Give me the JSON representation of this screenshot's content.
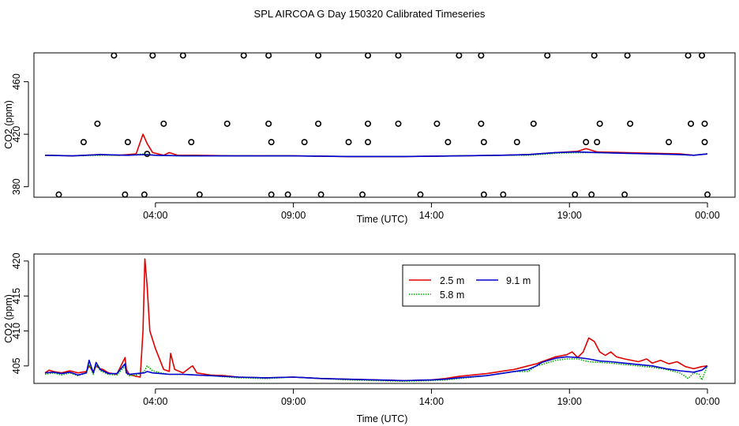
{
  "title": "SPL AIRCOA G  Day 150320  Calibrated Timeseries",
  "colors": {
    "s25": "#e00000",
    "s58": "#00b000",
    "s91": "#0000d0",
    "axis": "#000000"
  },
  "chart_data": [
    {
      "type": "line",
      "name": "top-panel",
      "ylabel": "CO2 (ppm)",
      "xlabel": "Time (UTC)",
      "x_unit": "hours",
      "xlim": [
        -0.4,
        25
      ],
      "ylim": [
        372,
        482
      ],
      "x_ticks": [
        {
          "x": 4,
          "label": "04:00"
        },
        {
          "x": 9,
          "label": "09:00"
        },
        {
          "x": 14,
          "label": "14:00"
        },
        {
          "x": 19,
          "label": "19:00"
        },
        {
          "x": 24,
          "label": "00:00"
        }
      ],
      "y_ticks": [
        {
          "y": 380,
          "label": "380"
        },
        {
          "y": 420,
          "label": "420"
        },
        {
          "y": 460,
          "label": "460"
        }
      ],
      "calibration_points": {
        "marker": "open-circle",
        "y_levels": [
          374,
          405,
          414,
          428,
          480
        ],
        "x_by_level": {
          "374": [
            0.5,
            2.9,
            3.6,
            5.6,
            8.2,
            8.8,
            10.0,
            11.5,
            13.6,
            15.9,
            16.6,
            19.2,
            19.8,
            21.0,
            24.0
          ],
          "405": [
            3.7
          ],
          "414": [
            1.4,
            3.0,
            5.3,
            8.2,
            9.4,
            11.0,
            11.7,
            14.6,
            15.9,
            17.1,
            19.6,
            20.0,
            22.6,
            23.9
          ],
          "428": [
            1.9,
            4.3,
            6.6,
            8.1,
            9.9,
            11.7,
            12.8,
            14.2,
            15.8,
            17.7,
            20.1,
            21.2,
            23.4,
            23.9
          ],
          "480": [
            2.5,
            3.9,
            5.0,
            7.2,
            8.1,
            9.9,
            11.7,
            12.8,
            15.0,
            15.8,
            18.2,
            19.9,
            21.1,
            23.3,
            23.8
          ]
        }
      },
      "series": [
        {
          "name": "2.5 m",
          "x": [
            0,
            1,
            2,
            2.7,
            3,
            3.3,
            3.55,
            3.7,
            3.9,
            4.3,
            4.5,
            4.8,
            5.5,
            7,
            9,
            11,
            13,
            15,
            16.5,
            17.5,
            18.5,
            19.3,
            19.6,
            20,
            21,
            22,
            23,
            23.5,
            24
          ],
          "values": [
            404,
            403.5,
            404.5,
            404,
            404.5,
            405,
            420,
            413,
            406,
            404,
            406,
            404,
            404,
            403.5,
            403.5,
            403,
            403,
            403.5,
            404,
            404.5,
            406,
            407,
            409,
            406.5,
            406,
            405.5,
            405,
            404,
            405
          ]
        },
        {
          "name": "5.8 m",
          "x": [
            0,
            1,
            2,
            3,
            3.6,
            4,
            5,
            7,
            9,
            11,
            13,
            15,
            16.5,
            17.5,
            18.5,
            19.3,
            20,
            21,
            22,
            23,
            23.5,
            24
          ],
          "values": [
            404,
            403.5,
            404,
            404,
            405,
            404,
            403.5,
            403.5,
            403.5,
            403,
            403,
            403.5,
            404,
            404,
            405.5,
            406,
            406,
            405.5,
            405,
            404.5,
            404,
            405
          ]
        },
        {
          "name": "9.1 m",
          "x": [
            0,
            1,
            2,
            3,
            3.6,
            4,
            5,
            7,
            9,
            11,
            13,
            15,
            16.5,
            17.5,
            18.5,
            19.3,
            20,
            21,
            22,
            23,
            23.5,
            24
          ],
          "values": [
            404,
            403.5,
            404.5,
            404,
            404.5,
            404,
            403.5,
            403.5,
            403.5,
            403,
            403,
            403.5,
            404,
            404.5,
            406,
            406.5,
            406,
            405.5,
            405,
            404.5,
            404,
            405
          ]
        }
      ]
    },
    {
      "type": "line",
      "name": "bottom-panel",
      "ylabel": "CO2 (ppm)",
      "xlabel": "Time (UTC)",
      "x_unit": "hours",
      "xlim": [
        -0.4,
        25
      ],
      "ylim": [
        402.5,
        421
      ],
      "x_ticks": [
        {
          "x": 4,
          "label": "04:00"
        },
        {
          "x": 9,
          "label": "09:00"
        },
        {
          "x": 14,
          "label": "14:00"
        },
        {
          "x": 19,
          "label": "19:00"
        },
        {
          "x": 24,
          "label": "00:00"
        }
      ],
      "y_ticks": [
        {
          "y": 405,
          "label": "405"
        },
        {
          "y": 410,
          "label": "410"
        },
        {
          "y": 415,
          "label": "415"
        },
        {
          "y": 420,
          "label": "420"
        }
      ],
      "legend": {
        "position": "top-center",
        "entries": [
          {
            "label": "2.5 m",
            "color_key": "s25",
            "style": "solid"
          },
          {
            "label": "5.8 m",
            "color_key": "s58",
            "style": "dotted"
          },
          {
            "label": "9.1 m",
            "color_key": "s91",
            "style": "solid"
          }
        ]
      },
      "series": [
        {
          "name": "2.5 m",
          "x": [
            0,
            0.15,
            0.3,
            0.6,
            0.9,
            1.2,
            1.5,
            1.6,
            1.75,
            1.85,
            2.0,
            2.1,
            2.3,
            2.6,
            2.9,
            2.95,
            3.05,
            3.3,
            3.45,
            3.55,
            3.62,
            3.7,
            3.8,
            4.0,
            4.3,
            4.5,
            4.55,
            4.7,
            5.0,
            5.3,
            5.35,
            5.5,
            6.0,
            6.5,
            7.0,
            8.0,
            9.0,
            10.0,
            11.0,
            12.0,
            13.0,
            14.0,
            14.5,
            15.0,
            16.0,
            16.5,
            17.0,
            17.5,
            17.8,
            18.0,
            18.5,
            18.9,
            19.1,
            19.3,
            19.5,
            19.7,
            19.9,
            20.1,
            20.3,
            20.5,
            20.7,
            21.0,
            21.5,
            21.8,
            22.0,
            22.3,
            22.6,
            22.9,
            23.2,
            23.5,
            23.8,
            24.0
          ],
          "values": [
            404,
            404.4,
            404.2,
            404.0,
            404.3,
            404.0,
            404.2,
            405.0,
            404.1,
            405.0,
            404.6,
            404.5,
            404.0,
            403.8,
            406.2,
            404.5,
            403.8,
            403.5,
            403.4,
            410.0,
            420.3,
            416.5,
            410.0,
            407.5,
            404.5,
            404.2,
            406.8,
            404.5,
            404.0,
            404.9,
            405.0,
            404.0,
            403.7,
            403.6,
            403.4,
            403.3,
            403.4,
            403.2,
            403.1,
            403.0,
            402.9,
            403.0,
            403.2,
            403.5,
            403.9,
            404.2,
            404.5,
            405.0,
            405.3,
            405.6,
            406.3,
            406.6,
            407.0,
            406.2,
            407.0,
            409.0,
            408.5,
            407.0,
            406.5,
            407.0,
            406.3,
            406.0,
            405.6,
            406.0,
            405.4,
            405.8,
            405.3,
            405.6,
            404.9,
            404.6,
            404.9,
            405.0
          ]
        },
        {
          "name": "5.8 m",
          "x": [
            0,
            0.3,
            0.6,
            0.9,
            1.2,
            1.5,
            1.6,
            1.75,
            1.85,
            2.0,
            2.3,
            2.6,
            2.9,
            2.95,
            3.05,
            3.3,
            3.6,
            3.7,
            3.9,
            4.2,
            4.5,
            5.0,
            5.5,
            6.0,
            7.0,
            8.0,
            9.0,
            10.0,
            11.0,
            12.0,
            13.0,
            14.0,
            14.5,
            15.0,
            16.0,
            16.5,
            17.0,
            17.5,
            17.8,
            18.0,
            18.5,
            18.9,
            19.3,
            19.7,
            20.1,
            20.5,
            21.0,
            21.5,
            22.0,
            22.5,
            23.0,
            23.3,
            23.5,
            23.7,
            23.8,
            24.0
          ],
          "values": [
            403.8,
            404.0,
            403.7,
            404.0,
            403.6,
            404.0,
            405.2,
            403.8,
            405.2,
            404.3,
            403.8,
            403.7,
            405.0,
            403.9,
            403.6,
            403.7,
            404.2,
            405.0,
            404.3,
            404.0,
            403.8,
            403.8,
            403.7,
            403.6,
            403.3,
            403.2,
            403.4,
            403.2,
            403.0,
            402.9,
            402.8,
            402.9,
            403.0,
            403.2,
            403.6,
            403.9,
            404.2,
            404.2,
            405.0,
            405.2,
            405.8,
            406.0,
            406.0,
            405.6,
            405.5,
            405.4,
            405.2,
            405.0,
            404.8,
            404.5,
            404.0,
            403.2,
            404.0,
            403.8,
            403.0,
            405.0
          ]
        },
        {
          "name": "9.1 m",
          "x": [
            0,
            0.3,
            0.6,
            0.9,
            1.2,
            1.5,
            1.6,
            1.75,
            1.85,
            2.0,
            2.3,
            2.6,
            2.9,
            2.95,
            3.05,
            3.3,
            3.6,
            3.7,
            3.9,
            4.2,
            4.5,
            5.0,
            5.5,
            6.0,
            7.0,
            8.0,
            9.0,
            10.0,
            11.0,
            12.0,
            13.0,
            14.0,
            14.5,
            15.0,
            16.0,
            16.5,
            17.0,
            17.5,
            17.8,
            18.0,
            18.5,
            18.9,
            19.3,
            19.7,
            20.1,
            20.5,
            21.0,
            21.5,
            22.0,
            22.5,
            23.0,
            23.5,
            23.8,
            24.0
          ],
          "values": [
            404.0,
            404.1,
            403.9,
            404.1,
            403.7,
            404.0,
            405.8,
            404.0,
            405.5,
            404.5,
            403.9,
            403.9,
            405.3,
            404.0,
            403.8,
            403.9,
            404.0,
            404.2,
            404.0,
            403.9,
            403.8,
            403.8,
            403.7,
            403.6,
            403.4,
            403.3,
            403.4,
            403.2,
            403.1,
            403.0,
            402.9,
            403.0,
            403.1,
            403.3,
            403.6,
            403.9,
            404.2,
            404.5,
            405.0,
            405.5,
            406.1,
            406.3,
            406.2,
            406.0,
            405.7,
            405.6,
            405.4,
            405.2,
            405.0,
            404.6,
            404.3,
            404.1,
            404.4,
            405.0
          ]
        }
      ]
    }
  ]
}
